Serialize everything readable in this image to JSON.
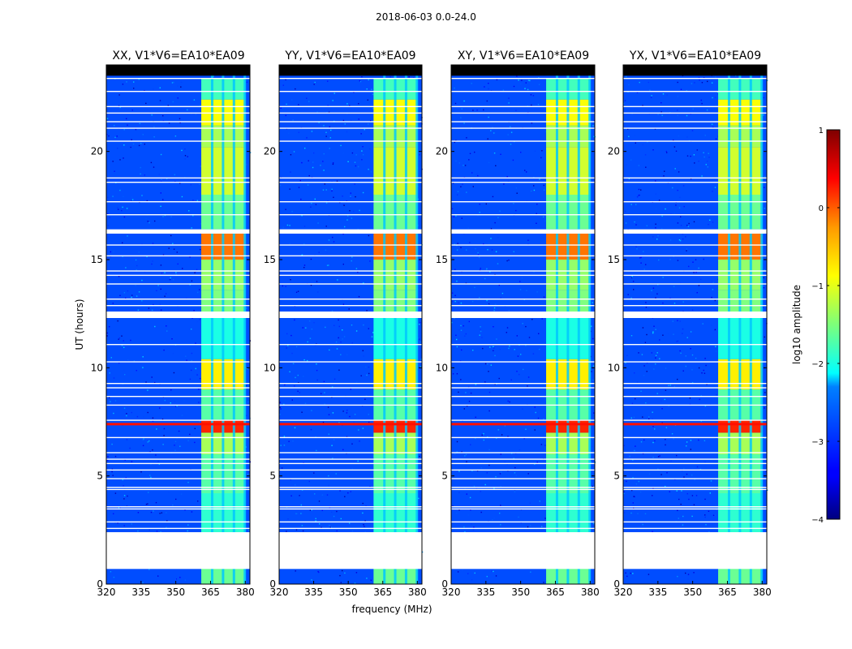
{
  "figure": {
    "title": "2018-06-03 0.0-24.0"
  },
  "colors": {
    "background": "#ffffff",
    "colormap": "jet",
    "frame": "#000000"
  },
  "chart_data": [
    {
      "type": "heatmap",
      "title": "XX, V1*V6=EA10*EA09",
      "xlabel": "frequency (MHz)",
      "ylabel": "UT (hours)",
      "xlim": [
        320,
        382
      ],
      "ylim": [
        0,
        24
      ],
      "xticks": [
        "320",
        "335",
        "350",
        "365",
        "380"
      ],
      "yticks": [
        "0",
        "5",
        "10",
        "15",
        "20"
      ],
      "value_label": "log10 amplitude",
      "background_level": -3.0,
      "strong_band_mhz": [
        361,
        380
      ],
      "blanked_hours": [
        [
          0.7,
          2.4
        ],
        [
          12.3,
          12.6
        ],
        [
          16.2,
          16.4
        ]
      ]
    },
    {
      "type": "heatmap",
      "title": "YY, V1*V6=EA10*EA09",
      "xlabel": "frequency (MHz)",
      "ylabel": "UT (hours)",
      "xlim": [
        320,
        382
      ],
      "ylim": [
        0,
        24
      ],
      "xticks": [
        "320",
        "335",
        "350",
        "365",
        "380"
      ],
      "yticks": [
        "0",
        "5",
        "10",
        "15",
        "20"
      ],
      "value_label": "log10 amplitude",
      "background_level": -3.0,
      "strong_band_mhz": [
        361,
        380
      ],
      "blanked_hours": [
        [
          0.7,
          2.4
        ],
        [
          12.3,
          12.6
        ],
        [
          16.2,
          16.4
        ]
      ]
    },
    {
      "type": "heatmap",
      "title": "XY, V1*V6=EA10*EA09",
      "xlabel": "frequency (MHz)",
      "ylabel": "UT (hours)",
      "xlim": [
        320,
        382
      ],
      "ylim": [
        0,
        24
      ],
      "xticks": [
        "320",
        "335",
        "350",
        "365",
        "380"
      ],
      "yticks": [
        "0",
        "5",
        "10",
        "15",
        "20"
      ],
      "value_label": "log10 amplitude",
      "background_level": -3.0,
      "strong_band_mhz": [
        361,
        380
      ],
      "blanked_hours": [
        [
          0.7,
          2.4
        ],
        [
          12.3,
          12.6
        ],
        [
          16.2,
          16.4
        ]
      ]
    },
    {
      "type": "heatmap",
      "title": "YX, V1*V6=EA10*EA09",
      "xlabel": "frequency (MHz)",
      "ylabel": "UT (hours)",
      "xlim": [
        320,
        382
      ],
      "ylim": [
        0,
        24
      ],
      "xticks": [
        "320",
        "335",
        "350",
        "365",
        "380"
      ],
      "yticks": [
        "0",
        "5",
        "10",
        "15",
        "20"
      ],
      "value_label": "log10 amplitude",
      "background_level": -3.0,
      "strong_band_mhz": [
        361,
        380
      ],
      "blanked_hours": [
        [
          0.7,
          2.4
        ],
        [
          12.3,
          12.6
        ],
        [
          16.2,
          16.4
        ]
      ]
    }
  ],
  "colorbar": {
    "label": "log10 amplitude",
    "min": -4,
    "max": 1,
    "ticks": [
      "1",
      "0",
      "−1",
      "−2",
      "−3",
      "−4"
    ]
  }
}
